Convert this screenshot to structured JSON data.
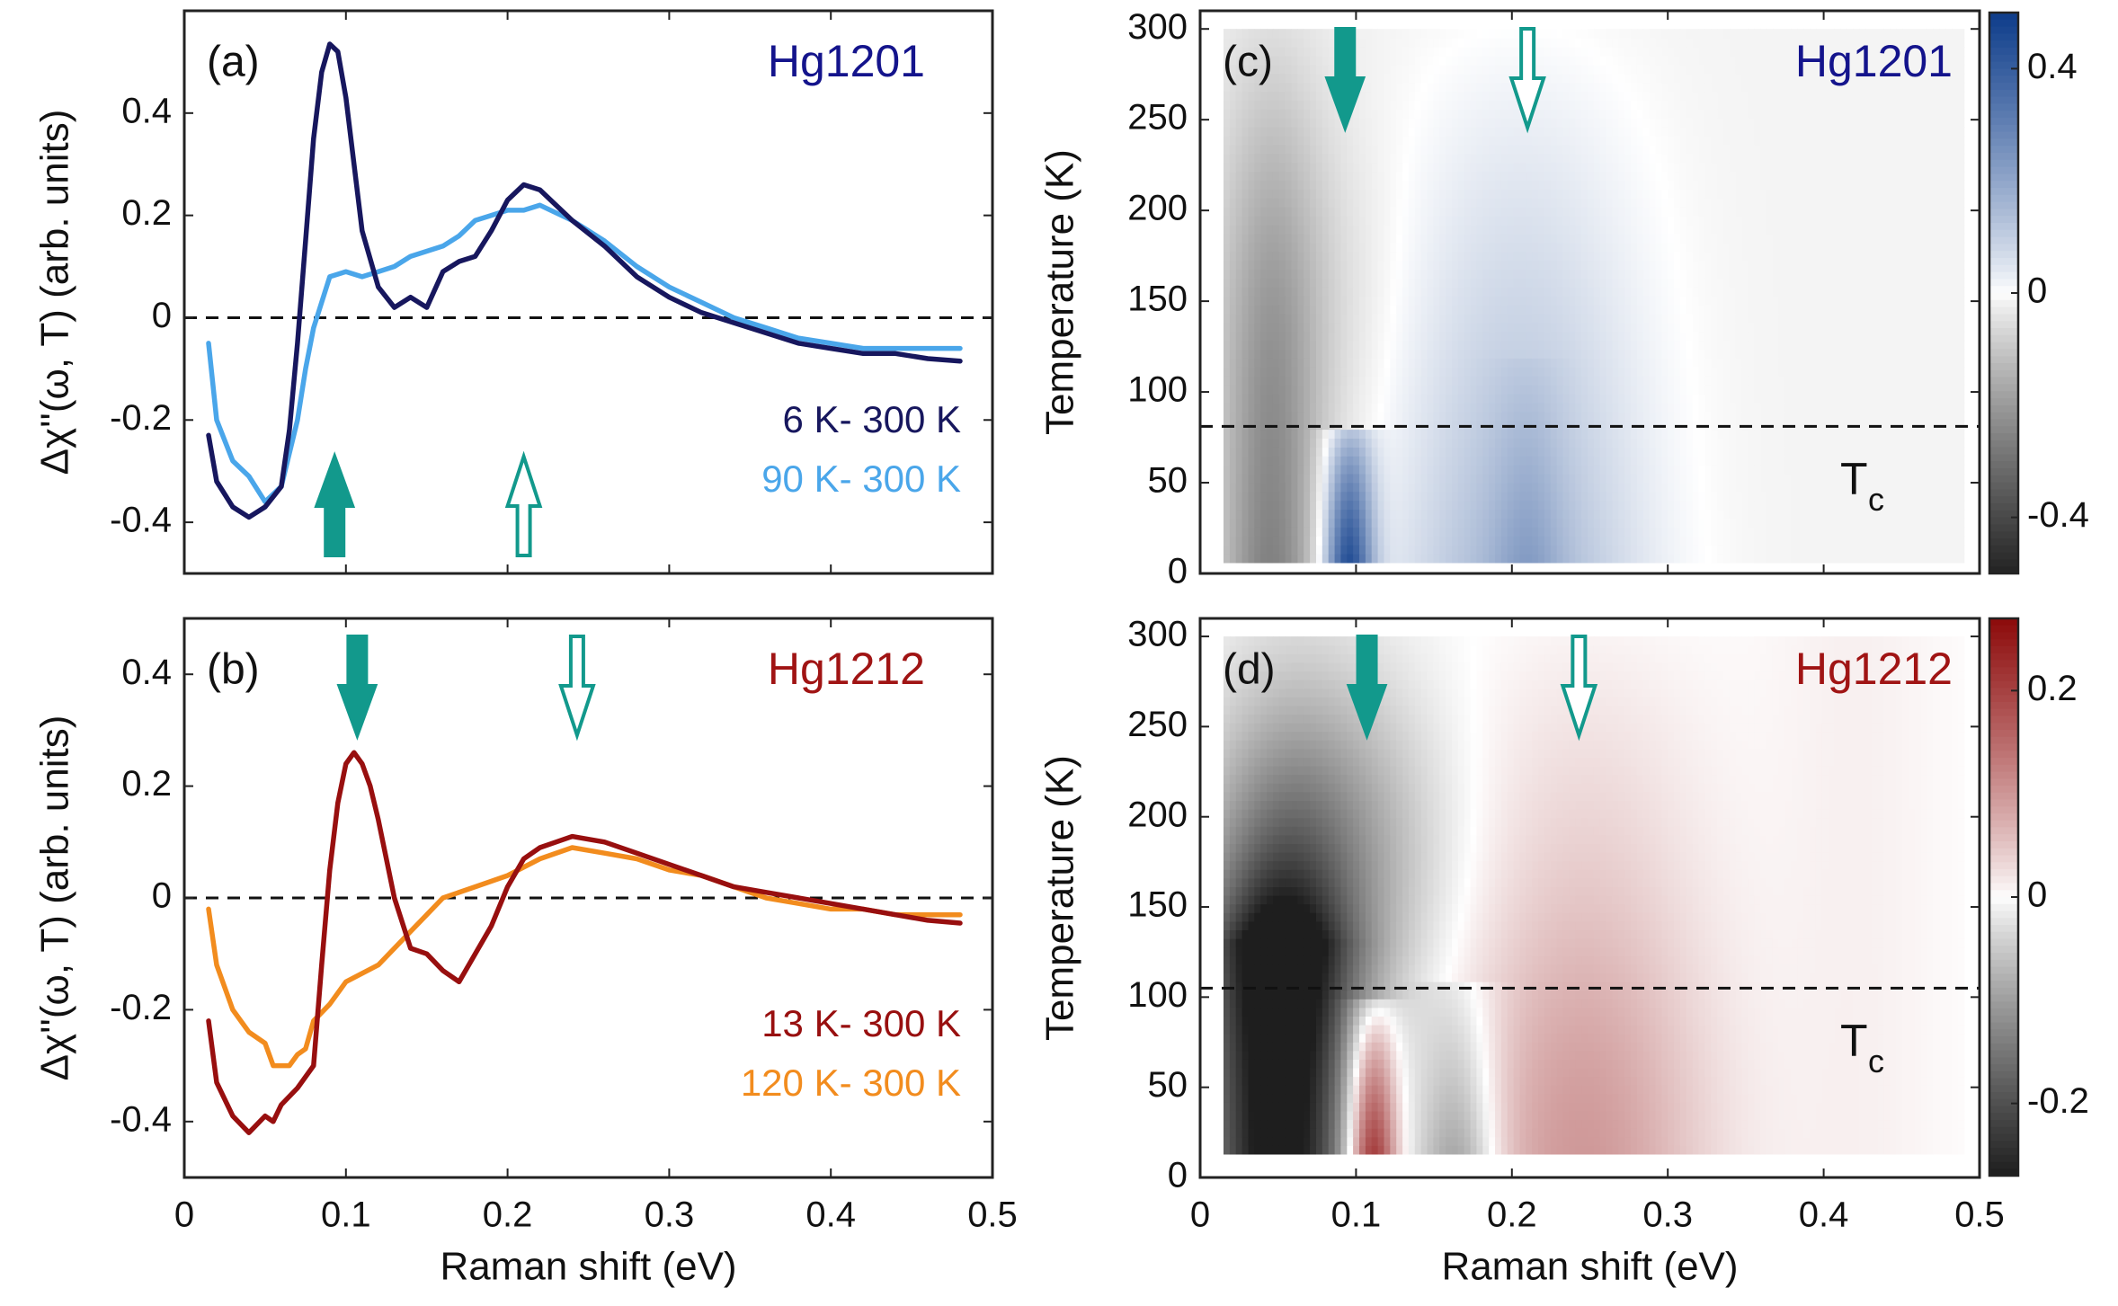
{
  "figure": {
    "shared_xlabel": "Raman shift (eV)",
    "shared_ylabel_line": "Δχ''(ω, T) (arb. units)",
    "shared_ylabel_map": "Temperature (K)",
    "tc_main": "T",
    "tc_sub": "c",
    "arrow_color": "#12998c"
  },
  "chart_data": [
    {
      "id": "a",
      "type": "line",
      "panel_label": "(a)",
      "title": "Hg1201",
      "title_color": "#14148c",
      "xlabel": "Raman shift (eV)",
      "ylabel": "Δχ''(ω, T) (arb. units)",
      "xlim": [
        0,
        0.5
      ],
      "ylim": [
        -0.5,
        0.6
      ],
      "xticks": [
        "0",
        "0.1",
        "0.2",
        "0.3",
        "0.4",
        "0.5"
      ],
      "yticks": [
        "-0.4",
        "-0.2",
        "0",
        "0.2",
        "0.4"
      ],
      "ytick_values": [
        -0.4,
        -0.2,
        0,
        0.2,
        0.4
      ],
      "zero_line": 0,
      "arrows": [
        {
          "x": 0.093,
          "filled": true,
          "direction": "up"
        },
        {
          "x": 0.21,
          "filled": false,
          "direction": "up"
        }
      ],
      "series": [
        {
          "name": "6 K- 300 K",
          "color": "#17175e",
          "x": [
            0.015,
            0.02,
            0.03,
            0.04,
            0.05,
            0.06,
            0.065,
            0.07,
            0.075,
            0.08,
            0.085,
            0.09,
            0.095,
            0.1,
            0.105,
            0.11,
            0.12,
            0.13,
            0.14,
            0.15,
            0.16,
            0.17,
            0.18,
            0.19,
            0.2,
            0.21,
            0.22,
            0.23,
            0.24,
            0.26,
            0.28,
            0.3,
            0.32,
            0.34,
            0.36,
            0.38,
            0.4,
            0.42,
            0.44,
            0.46,
            0.48
          ],
          "y": [
            -0.23,
            -0.32,
            -0.37,
            -0.39,
            -0.37,
            -0.33,
            -0.22,
            -0.05,
            0.15,
            0.35,
            0.48,
            0.535,
            0.52,
            0.43,
            0.3,
            0.17,
            0.06,
            0.02,
            0.04,
            0.02,
            0.09,
            0.11,
            0.12,
            0.17,
            0.23,
            0.26,
            0.25,
            0.22,
            0.19,
            0.14,
            0.08,
            0.04,
            0.01,
            -0.01,
            -0.03,
            -0.05,
            -0.06,
            -0.07,
            -0.07,
            -0.08,
            -0.085
          ]
        },
        {
          "name": "90 K- 300 K",
          "color": "#4aa6ea",
          "x": [
            0.015,
            0.02,
            0.03,
            0.04,
            0.05,
            0.06,
            0.07,
            0.075,
            0.08,
            0.09,
            0.1,
            0.11,
            0.12,
            0.13,
            0.14,
            0.15,
            0.16,
            0.17,
            0.18,
            0.19,
            0.2,
            0.21,
            0.22,
            0.24,
            0.26,
            0.28,
            0.3,
            0.32,
            0.34,
            0.36,
            0.38,
            0.4,
            0.42,
            0.44,
            0.46,
            0.48
          ],
          "y": [
            -0.05,
            -0.2,
            -0.28,
            -0.31,
            -0.36,
            -0.33,
            -0.2,
            -0.1,
            -0.02,
            0.08,
            0.09,
            0.08,
            0.09,
            0.1,
            0.12,
            0.13,
            0.14,
            0.16,
            0.19,
            0.2,
            0.21,
            0.21,
            0.22,
            0.19,
            0.15,
            0.1,
            0.06,
            0.03,
            0.0,
            -0.02,
            -0.04,
            -0.05,
            -0.06,
            -0.06,
            -0.06,
            -0.06
          ]
        }
      ]
    },
    {
      "id": "b",
      "type": "line",
      "panel_label": "(b)",
      "title": "Hg1212",
      "title_color": "#a01414",
      "xlabel": "Raman shift (eV)",
      "ylabel": "Δχ''(ω, T) (arb. units)",
      "xlim": [
        0,
        0.5
      ],
      "ylim": [
        -0.5,
        0.5
      ],
      "xticks": [
        "0",
        "0.1",
        "0.2",
        "0.3",
        "0.4",
        "0.5"
      ],
      "yticks": [
        "-0.4",
        "-0.2",
        "0",
        "0.2",
        "0.4"
      ],
      "ytick_values": [
        -0.4,
        -0.2,
        0,
        0.2,
        0.4
      ],
      "zero_line": 0,
      "arrows": [
        {
          "x": 0.107,
          "filled": true,
          "direction": "down"
        },
        {
          "x": 0.243,
          "filled": false,
          "direction": "down"
        }
      ],
      "series": [
        {
          "name": "13 K- 300 K",
          "color": "#980f0f",
          "x": [
            0.015,
            0.02,
            0.03,
            0.04,
            0.05,
            0.055,
            0.06,
            0.07,
            0.08,
            0.085,
            0.09,
            0.095,
            0.1,
            0.105,
            0.11,
            0.115,
            0.12,
            0.13,
            0.14,
            0.15,
            0.16,
            0.17,
            0.18,
            0.19,
            0.2,
            0.21,
            0.22,
            0.23,
            0.24,
            0.26,
            0.28,
            0.3,
            0.32,
            0.34,
            0.36,
            0.38,
            0.4,
            0.42,
            0.44,
            0.46,
            0.48
          ],
          "y": [
            -0.22,
            -0.33,
            -0.39,
            -0.42,
            -0.39,
            -0.4,
            -0.37,
            -0.34,
            -0.3,
            -0.12,
            0.05,
            0.17,
            0.24,
            0.26,
            0.24,
            0.2,
            0.14,
            0.0,
            -0.09,
            -0.1,
            -0.13,
            -0.15,
            -0.1,
            -0.05,
            0.02,
            0.07,
            0.09,
            0.1,
            0.11,
            0.1,
            0.08,
            0.06,
            0.04,
            0.02,
            0.01,
            0.0,
            -0.01,
            -0.02,
            -0.03,
            -0.04,
            -0.045
          ]
        },
        {
          "name": "120 K- 300 K",
          "color": "#f28c1e",
          "x": [
            0.015,
            0.02,
            0.03,
            0.04,
            0.05,
            0.055,
            0.06,
            0.065,
            0.07,
            0.075,
            0.08,
            0.09,
            0.1,
            0.12,
            0.14,
            0.15,
            0.16,
            0.18,
            0.2,
            0.22,
            0.24,
            0.26,
            0.28,
            0.3,
            0.32,
            0.34,
            0.36,
            0.38,
            0.4,
            0.42,
            0.44,
            0.46,
            0.48
          ],
          "y": [
            -0.02,
            -0.12,
            -0.2,
            -0.24,
            -0.26,
            -0.3,
            -0.3,
            -0.3,
            -0.28,
            -0.27,
            -0.22,
            -0.19,
            -0.15,
            -0.12,
            -0.06,
            -0.03,
            0.0,
            0.02,
            0.04,
            0.07,
            0.09,
            0.08,
            0.07,
            0.05,
            0.04,
            0.02,
            0.0,
            -0.01,
            -0.02,
            -0.02,
            -0.03,
            -0.03,
            -0.03
          ]
        }
      ]
    },
    {
      "id": "c",
      "type": "heatmap",
      "panel_label": "(c)",
      "title": "Hg1201",
      "title_color": "#14148c",
      "xlabel": "Raman shift (eV)",
      "ylabel": "Temperature (K)",
      "xlim": [
        0,
        0.5
      ],
      "ylim": [
        0,
        310
      ],
      "data_xrange": [
        0.015,
        0.49
      ],
      "data_yrange": [
        6,
        300
      ],
      "xticks": [
        "0",
        "0.1",
        "0.2",
        "0.3",
        "0.4",
        "0.5"
      ],
      "yticks": [
        "0",
        "50",
        "100",
        "150",
        "200",
        "250",
        "300"
      ],
      "ytick_values": [
        0,
        50,
        100,
        150,
        200,
        250,
        300
      ],
      "tc_line": 81,
      "arrows": [
        {
          "x": 0.093,
          "filled": true,
          "direction": "down"
        },
        {
          "x": 0.21,
          "filled": false,
          "direction": "down"
        }
      ],
      "colormap": "gray-white-blue",
      "neg_color": "#232323",
      "pos_color": "#0d3c8a",
      "clim": [
        -0.5,
        0.5
      ],
      "colorbar_ticks": [
        "-0.4",
        "0",
        "0.4"
      ],
      "colorbar_tick_values": [
        -0.4,
        0,
        0.4
      ]
    },
    {
      "id": "d",
      "type": "heatmap",
      "panel_label": "(d)",
      "title": "Hg1212",
      "title_color": "#a01414",
      "xlabel": "Raman shift (eV)",
      "ylabel": "Temperature (K)",
      "xlim": [
        0,
        0.5
      ],
      "ylim": [
        0,
        310
      ],
      "data_xrange": [
        0.015,
        0.49
      ],
      "data_yrange": [
        13,
        300
      ],
      "xticks": [
        "0",
        "0.1",
        "0.2",
        "0.3",
        "0.4",
        "0.5"
      ],
      "yticks": [
        "0",
        "50",
        "100",
        "150",
        "200",
        "250",
        "300"
      ],
      "ytick_values": [
        0,
        50,
        100,
        150,
        200,
        250,
        300
      ],
      "tc_line": 105,
      "arrows": [
        {
          "x": 0.107,
          "filled": true,
          "direction": "down"
        },
        {
          "x": 0.243,
          "filled": false,
          "direction": "down"
        }
      ],
      "colormap": "gray-white-red",
      "neg_color": "#1e1e1e",
      "pos_color": "#8c0a0a",
      "clim": [
        -0.27,
        0.27
      ],
      "colorbar_ticks": [
        "-0.2",
        "0",
        "0.2"
      ],
      "colorbar_tick_values": [
        -0.2,
        0,
        0.2
      ]
    }
  ]
}
